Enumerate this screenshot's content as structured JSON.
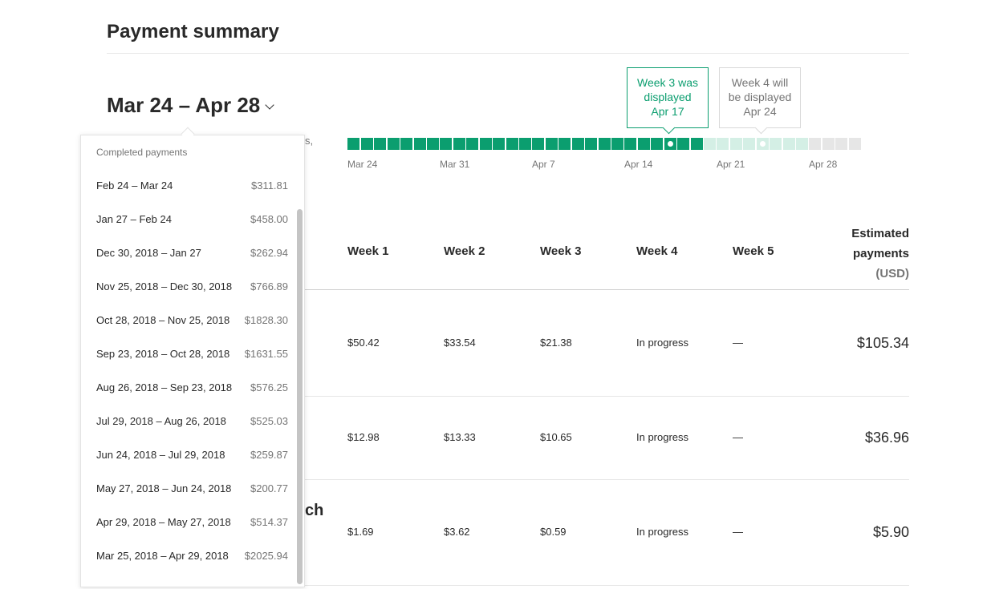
{
  "page_title": "Payment summary",
  "range_selector": {
    "label": "Mar 24 – Apr 28"
  },
  "callouts": {
    "current": {
      "line1": "Week 3 was",
      "line2": "displayed",
      "line3": "Apr 17"
    },
    "next": {
      "line1": "Week 4 will",
      "line2": "be displayed",
      "line3": "Apr 24"
    }
  },
  "timeline": {
    "labels": [
      "Mar 24",
      "Mar 31",
      "Apr 7",
      "Apr 14",
      "Apr 21",
      "Apr 28"
    ],
    "peek_text": "s,"
  },
  "table": {
    "headers": [
      "Week 1",
      "Week 2",
      "Week 3",
      "Week 4",
      "Week 5"
    ],
    "estimated_header": {
      "line1": "Estimated",
      "line2": "payments",
      "line3": "(USD)"
    },
    "rows": [
      {
        "cells": [
          "$50.42",
          "$33.54",
          "$21.38",
          "In progress",
          "—"
        ],
        "total": "$105.34"
      },
      {
        "cells": [
          "$12.98",
          "$13.33",
          "$10.65",
          "In progress",
          "—"
        ],
        "total": "$36.96"
      },
      {
        "cells": [
          "$1.69",
          "$3.62",
          "$0.59",
          "In progress",
          "—"
        ],
        "total": "$5.90"
      }
    ],
    "peek_text": "ch"
  },
  "dropdown": {
    "heading": "Completed payments",
    "items": [
      {
        "label": "Feb 24 – Mar 24",
        "amount": "$311.81"
      },
      {
        "label": "Jan 27 – Feb 24",
        "amount": "$458.00"
      },
      {
        "label": "Dec 30, 2018 – Jan 27",
        "amount": "$262.94"
      },
      {
        "label": "Nov 25, 2018 – Dec 30, 2018",
        "amount": "$766.89"
      },
      {
        "label": "Oct 28, 2018 – Nov 25, 2018",
        "amount": "$1828.30"
      },
      {
        "label": "Sep 23, 2018 – Oct 28, 2018",
        "amount": "$1631.55"
      },
      {
        "label": "Aug 26, 2018 – Sep 23, 2018",
        "amount": "$576.25"
      },
      {
        "label": "Jul 29, 2018 – Aug 26, 2018",
        "amount": "$525.03"
      },
      {
        "label": "Jun 24, 2018 – Jul 29, 2018",
        "amount": "$259.87"
      },
      {
        "label": "May 27, 2018 – Jun 24, 2018",
        "amount": "$200.77"
      },
      {
        "label": "Apr 29, 2018 – May 27, 2018",
        "amount": "$514.37"
      },
      {
        "label": "Mar 25, 2018 – Apr 29, 2018",
        "amount": "$2025.94"
      }
    ]
  },
  "colors": {
    "accent": "#0b9e6f",
    "future": "#d4efe5",
    "upcoming": "#e6e6e6"
  }
}
